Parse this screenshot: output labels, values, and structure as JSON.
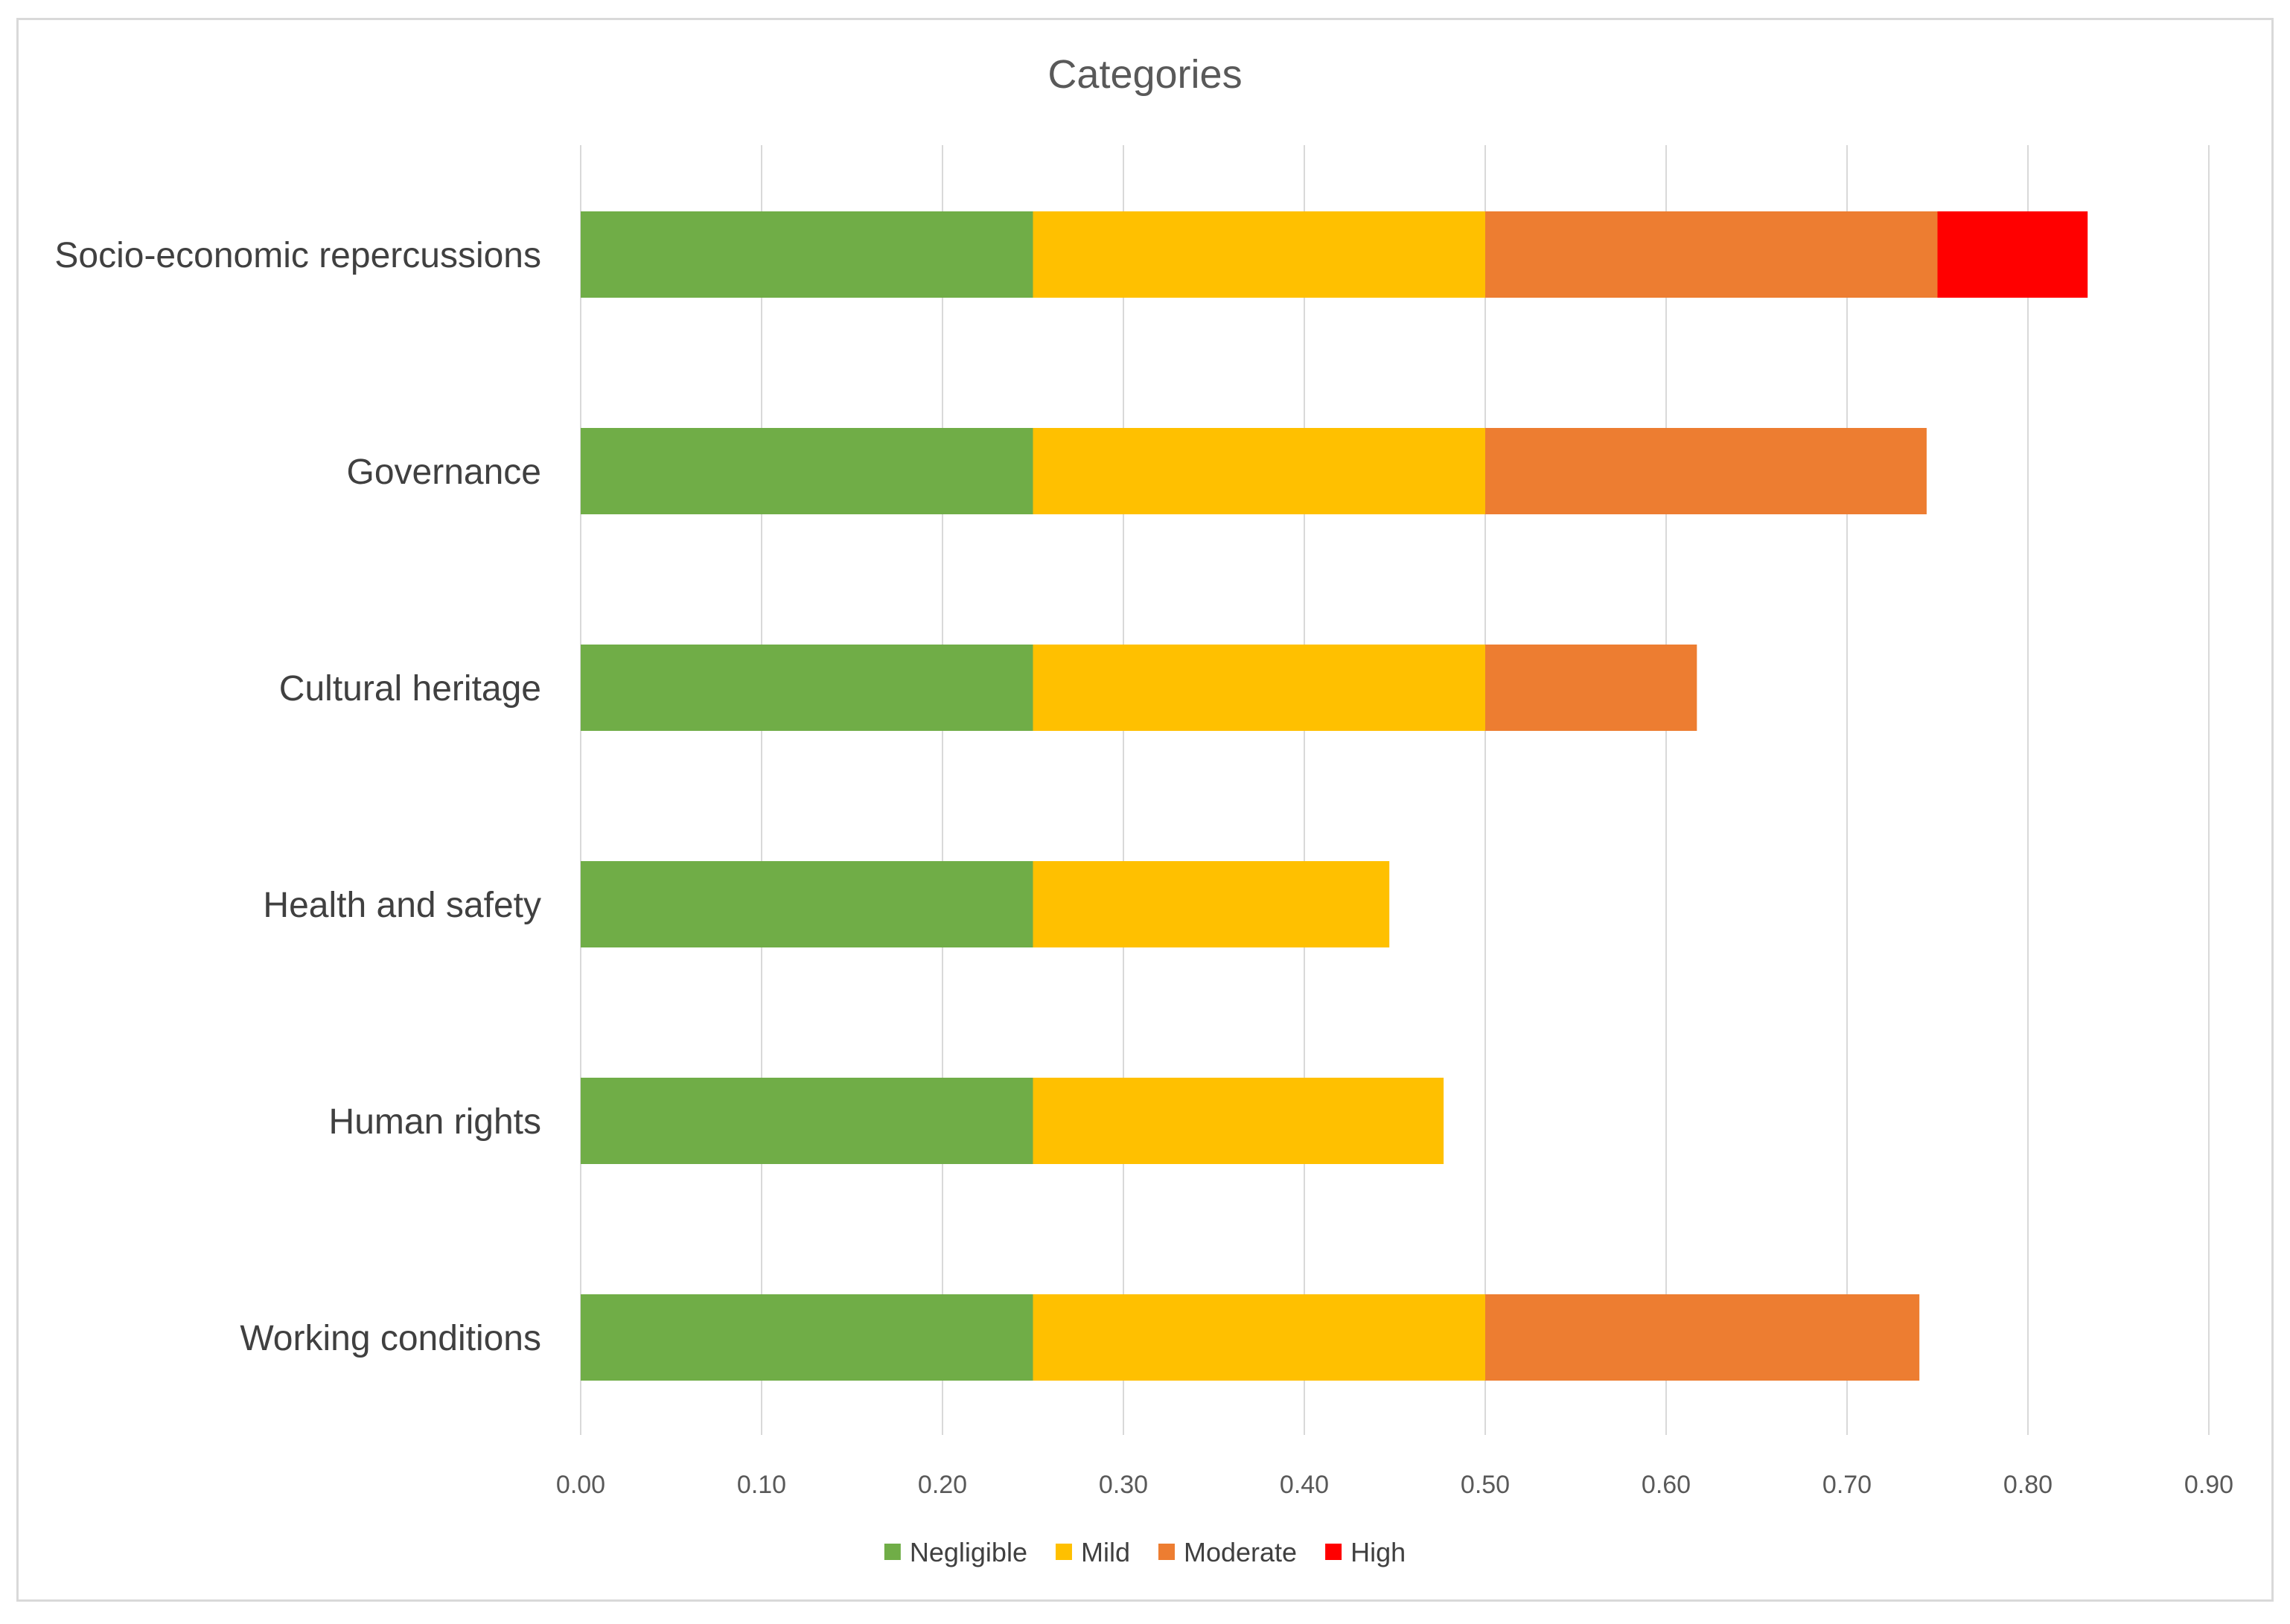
{
  "chart_data": {
    "type": "bar",
    "orientation": "horizontal",
    "stacked": true,
    "title": "Categories",
    "xlabel": "",
    "ylabel": "",
    "xlim": [
      0,
      0.9
    ],
    "x_ticks": [
      0.0,
      0.1,
      0.2,
      0.3,
      0.4,
      0.5,
      0.6,
      0.7,
      0.8,
      0.9
    ],
    "x_tick_labels": [
      "0.00",
      "0.10",
      "0.20",
      "0.30",
      "0.40",
      "0.50",
      "0.60",
      "0.70",
      "0.80",
      "0.90"
    ],
    "grid": true,
    "legend_position": "bottom",
    "categories": [
      "Socio-economic repercussions",
      "Governance",
      "Cultural heritage",
      "Health and safety",
      "Human rights",
      "Working conditions"
    ],
    "series": [
      {
        "name": "Negligible",
        "color": "#70AD47",
        "values": [
          0.25,
          0.25,
          0.25,
          0.25,
          0.25,
          0.25
        ]
      },
      {
        "name": "Mild",
        "color": "#FFC000",
        "values": [
          0.25,
          0.25,
          0.25,
          0.197,
          0.227,
          0.25
        ]
      },
      {
        "name": "Moderate",
        "color": "#ED7D31",
        "values": [
          0.25,
          0.244,
          0.117,
          0,
          0,
          0.24
        ]
      },
      {
        "name": "High",
        "color": "#FF0000",
        "values": [
          0.083,
          0,
          0,
          0,
          0,
          0
        ]
      }
    ]
  }
}
